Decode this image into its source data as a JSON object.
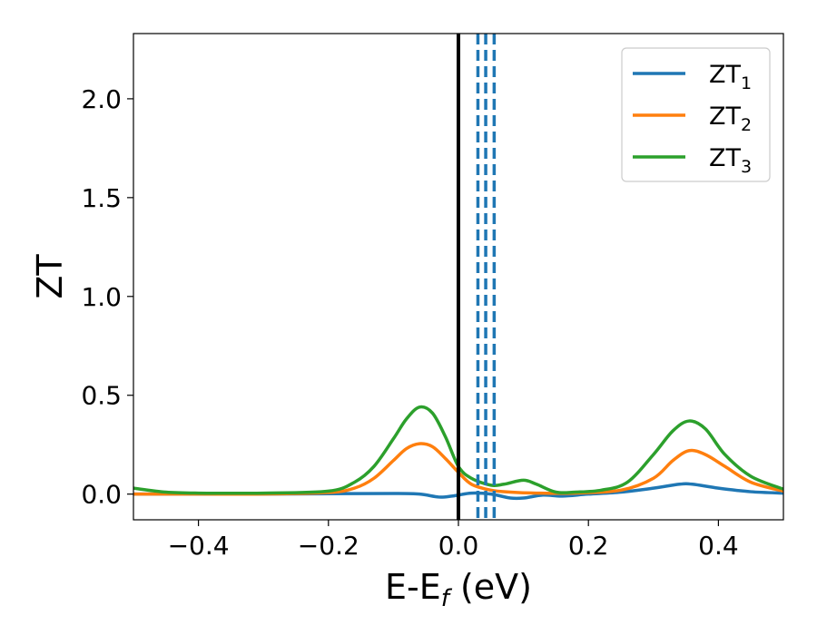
{
  "chart_data": {
    "type": "line",
    "xlabel": "E-E",
    "xlabel_sub": "f",
    "xlabel_unit": " (eV)",
    "ylabel": "ZT",
    "xlim": [
      -0.5,
      0.5
    ],
    "ylim": [
      -0.13,
      2.33
    ],
    "xticks": [
      -0.4,
      -0.2,
      0.0,
      0.2,
      0.4
    ],
    "xtick_labels": [
      "−0.4",
      "−0.2",
      "0.0",
      "0.2",
      "0.4"
    ],
    "yticks": [
      0.0,
      0.5,
      1.0,
      1.5,
      2.0
    ],
    "ytick_labels": [
      "0.0",
      "0.5",
      "1.0",
      "1.5",
      "2.0"
    ],
    "grid": false,
    "legend": "top-right",
    "series": [
      {
        "name": "ZT",
        "name_sub": "1",
        "color": "#1f77b4",
        "x": [
          -0.5,
          -0.4,
          -0.3,
          -0.2,
          -0.1,
          -0.06,
          -0.03,
          -0.01,
          0.0,
          0.02,
          0.05,
          0.08,
          0.1,
          0.13,
          0.16,
          0.2,
          0.25,
          0.3,
          0.34,
          0.36,
          0.4,
          0.45,
          0.5
        ],
        "y": [
          0.0,
          0.0,
          0.0,
          0.002,
          0.003,
          0.0,
          -0.015,
          -0.01,
          -0.005,
          0.005,
          0.0,
          -0.02,
          -0.02,
          -0.005,
          -0.01,
          0.0,
          0.01,
          0.03,
          0.05,
          0.05,
          0.03,
          0.012,
          0.005
        ]
      },
      {
        "name": "ZT",
        "name_sub": "2",
        "color": "#ff7f0e",
        "x": [
          -0.5,
          -0.4,
          -0.3,
          -0.2,
          -0.16,
          -0.13,
          -0.1,
          -0.08,
          -0.06,
          -0.04,
          -0.02,
          0.0,
          0.02,
          0.05,
          0.08,
          0.12,
          0.18,
          0.25,
          0.3,
          0.33,
          0.355,
          0.38,
          0.41,
          0.45,
          0.5
        ],
        "y": [
          0.0,
          0.0,
          0.0,
          0.008,
          0.03,
          0.08,
          0.17,
          0.23,
          0.255,
          0.24,
          0.18,
          0.11,
          0.05,
          0.02,
          0.01,
          0.005,
          0.005,
          0.02,
          0.08,
          0.17,
          0.22,
          0.2,
          0.14,
          0.06,
          0.015
        ]
      },
      {
        "name": "ZT",
        "name_sub": "3",
        "color": "#2ca02c",
        "x": [
          -0.5,
          -0.45,
          -0.4,
          -0.3,
          -0.2,
          -0.16,
          -0.13,
          -0.1,
          -0.08,
          -0.06,
          -0.04,
          -0.02,
          0.0,
          0.02,
          0.05,
          0.07,
          0.1,
          0.12,
          0.15,
          0.18,
          0.22,
          0.26,
          0.3,
          0.33,
          0.355,
          0.38,
          0.41,
          0.45,
          0.5
        ],
        "y": [
          0.03,
          0.01,
          0.005,
          0.005,
          0.015,
          0.06,
          0.14,
          0.28,
          0.38,
          0.44,
          0.41,
          0.29,
          0.14,
          0.08,
          0.045,
          0.05,
          0.07,
          0.05,
          0.01,
          0.01,
          0.02,
          0.06,
          0.2,
          0.32,
          0.37,
          0.33,
          0.2,
          0.09,
          0.025
        ]
      }
    ],
    "vlines": [
      {
        "x": 0.0,
        "color": "#000000",
        "style": "solid"
      },
      {
        "x": 0.03,
        "color": "#1f77b4",
        "style": "dashed"
      },
      {
        "x": 0.042,
        "color": "#1f77b4",
        "style": "dashed"
      },
      {
        "x": 0.055,
        "color": "#1f77b4",
        "style": "dashed"
      }
    ]
  }
}
